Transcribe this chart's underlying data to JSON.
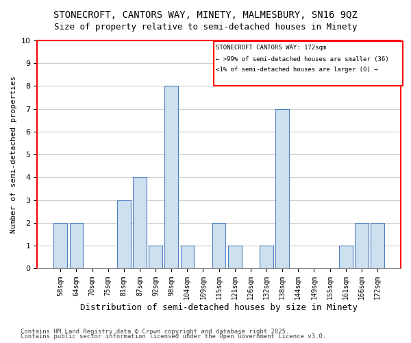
{
  "title": "STONECROFT, CANTORS WAY, MINETY, MALMESBURY, SN16 9QZ",
  "subtitle": "Size of property relative to semi-detached houses in Minety",
  "xlabel": "Distribution of semi-detached houses by size in Minety",
  "ylabel": "Number of semi-detached properties",
  "categories": [
    "58sqm",
    "64sqm",
    "70sqm",
    "75sqm",
    "81sqm",
    "87sqm",
    "92sqm",
    "98sqm",
    "104sqm",
    "109sqm",
    "115sqm",
    "121sqm",
    "126sqm",
    "132sqm",
    "138sqm",
    "144sqm",
    "149sqm",
    "155sqm",
    "161sqm",
    "166sqm",
    "172sqm"
  ],
  "values": [
    2,
    2,
    0,
    0,
    3,
    4,
    1,
    8,
    1,
    0,
    2,
    1,
    0,
    1,
    7,
    0,
    0,
    0,
    1,
    2,
    2
  ],
  "bar_color": "#cce0f0",
  "bar_edge_color": "#4f7fbf",
  "highlight_index": 20,
  "highlight_bar_color": "#cce0f0",
  "legend_title": "STONECROFT CANTORS WAY: 172sqm",
  "legend_line1": "← >99% of semi-detached houses are smaller (36)",
  "legend_line2": "<1% of semi-detached houses are larger (0) →",
  "legend_box_color": "#ff0000",
  "ylim": [
    0,
    10
  ],
  "yticks": [
    0,
    1,
    2,
    3,
    4,
    5,
    6,
    7,
    8,
    9,
    10
  ],
  "footer1": "Contains HM Land Registry data © Crown copyright and database right 2025.",
  "footer2": "Contains public sector information licensed under the Open Government Licence v3.0.",
  "bg_color": "#ffffff",
  "grid_color": "#cccccc",
  "title_fontsize": 10,
  "subtitle_fontsize": 9,
  "axis_label_fontsize": 8,
  "tick_fontsize": 7,
  "footer_fontsize": 6.5
}
